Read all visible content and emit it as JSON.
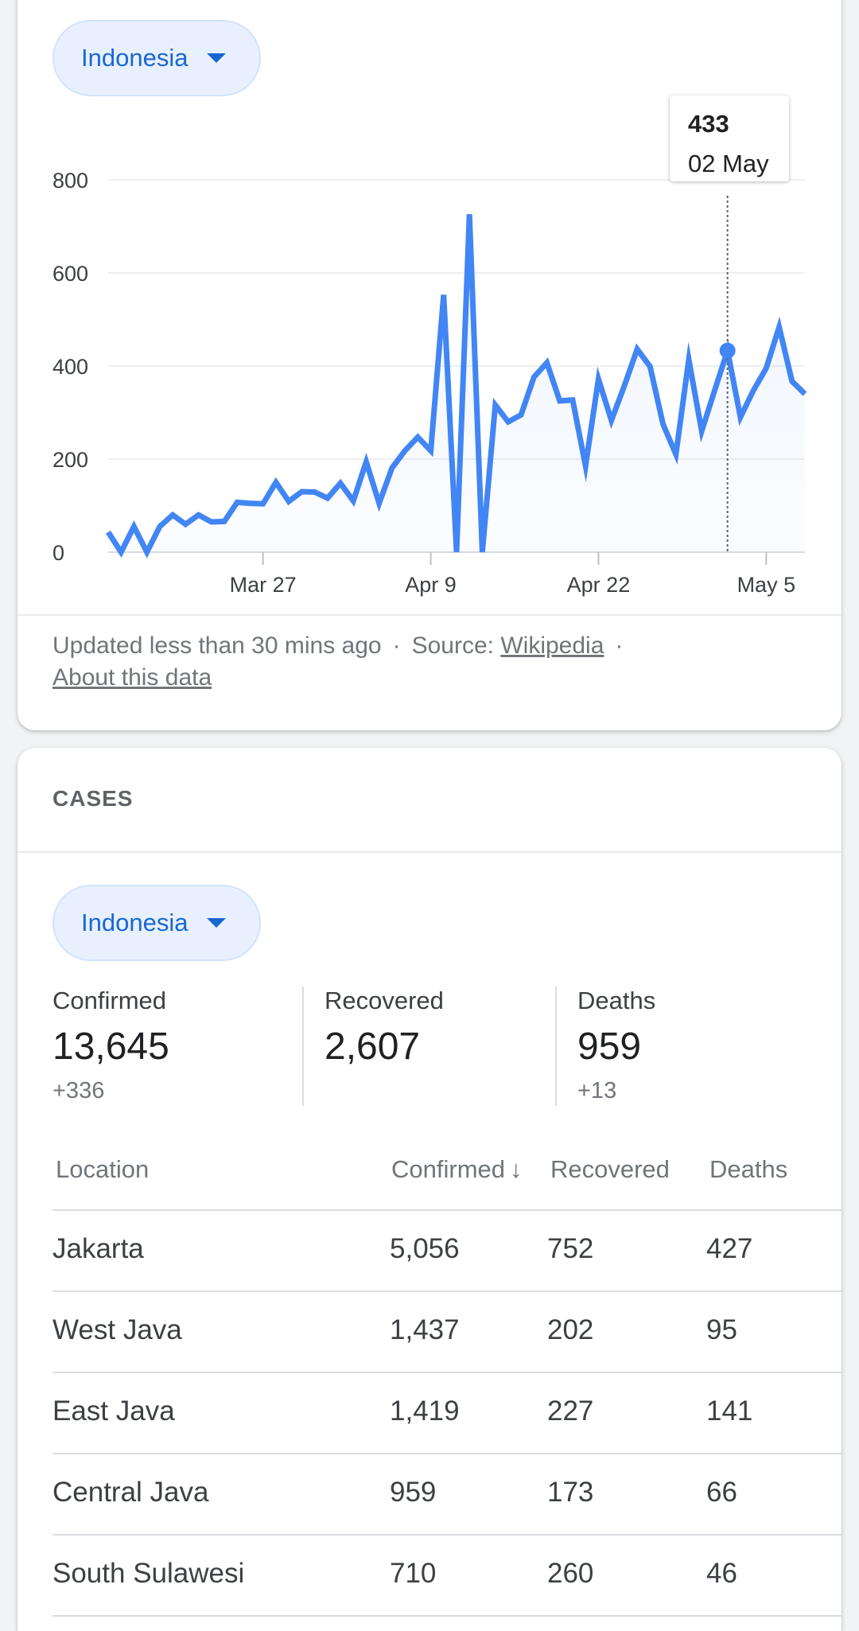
{
  "chart_card": {
    "country": "Indonesia",
    "tooltip": {
      "value": "433",
      "date": "02 May"
    },
    "footer": {
      "updated": "Updated less than 30 mins ago",
      "source_label": "Source:",
      "source_link": "Wikipedia",
      "about_link": "About this data",
      "separator": "·"
    }
  },
  "chart_data": {
    "type": "area",
    "x_start": "2020-03-15",
    "y_ticks": [
      "0",
      "200",
      "400",
      "600",
      "800"
    ],
    "ylim": [
      0,
      800
    ],
    "x_ticks": [
      {
        "label": "Mar 27",
        "day": 12
      },
      {
        "label": "Apr 9",
        "day": 25
      },
      {
        "label": "Apr 22",
        "day": 38
      },
      {
        "label": "May 5",
        "day": 51
      }
    ],
    "values": [
      43,
      0,
      55,
      0,
      55,
      80,
      60,
      80,
      65,
      66,
      107,
      105,
      104,
      150,
      109,
      130,
      129,
      116,
      148,
      110,
      194,
      105,
      181,
      218,
      247,
      218,
      553,
      0,
      726,
      0,
      316,
      280,
      295,
      376,
      407,
      325,
      327,
      185,
      372,
      283,
      357,
      436,
      399,
      275,
      210,
      414,
      260,
      347,
      433,
      290,
      347,
      395,
      484,
      367,
      340
    ],
    "highlight_index": 48,
    "line_color": "#4285f4",
    "grid": true
  },
  "cases_card": {
    "title": "CASES",
    "country": "Indonesia",
    "stats": [
      {
        "label": "Confirmed",
        "value": "13,645",
        "delta": "+336"
      },
      {
        "label": "Recovered",
        "value": "2,607",
        "delta": ""
      },
      {
        "label": "Deaths",
        "value": "959",
        "delta": "+13"
      }
    ],
    "table": {
      "headers": {
        "location": "Location",
        "confirmed": "Confirmed",
        "sort_arrow": "↓",
        "recovered": "Recovered",
        "deaths": "Deaths"
      },
      "rows": [
        {
          "location": "Jakarta",
          "confirmed": "5,056",
          "recovered": "752",
          "deaths": "427"
        },
        {
          "location": "West Java",
          "confirmed": "1,437",
          "recovered": "202",
          "deaths": "95"
        },
        {
          "location": "East Java",
          "confirmed": "1,419",
          "recovered": "227",
          "deaths": "141"
        },
        {
          "location": "Central Java",
          "confirmed": "959",
          "recovered": "173",
          "deaths": "66"
        },
        {
          "location": "South Sulawesi",
          "confirmed": "710",
          "recovered": "260",
          "deaths": "46"
        }
      ]
    }
  }
}
